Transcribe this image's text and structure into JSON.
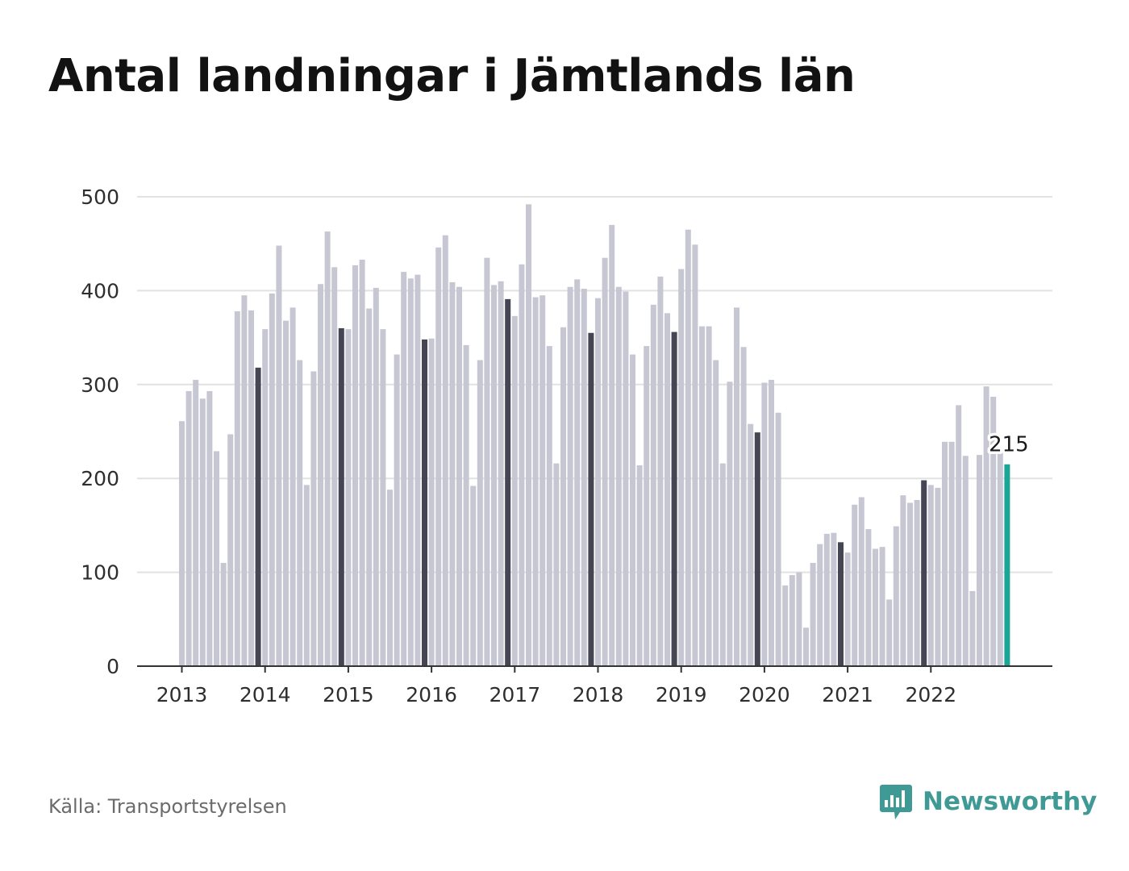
{
  "header": {
    "title": "Antal landningar i Jämtlands län"
  },
  "footer": {
    "source": "Källa: Transportstyrelsen",
    "brand": "Newsworthy"
  },
  "colors": {
    "bar": "#c7c6d3",
    "highlight": "#454554",
    "latest": "#1aa596",
    "grid": "#e2e2e2",
    "axis": "#333333",
    "brand": "#3f9a95"
  },
  "icons": {
    "brand": "newsworthy-logo-icon"
  },
  "chart_data": {
    "type": "bar",
    "title": "Antal landningar i Jämtlands län",
    "xlabel": "",
    "ylabel": "",
    "ylim": [
      0,
      500
    ],
    "yticks": [
      "0",
      "100",
      "200",
      "300",
      "400",
      "500"
    ],
    "xticks": [
      "2013",
      "2014",
      "2015",
      "2016",
      "2017",
      "2018",
      "2019",
      "2020",
      "2021",
      "2022"
    ],
    "grid": true,
    "highlight": "December bars in dark; latest month in teal",
    "annotation": {
      "text": "215",
      "target": "last"
    },
    "start": "2013-01",
    "values": [
      261,
      293,
      305,
      285,
      293,
      229,
      110,
      247,
      378,
      395,
      379,
      318,
      359,
      397,
      448,
      368,
      382,
      326,
      193,
      314,
      407,
      463,
      425,
      360,
      359,
      427,
      433,
      381,
      403,
      359,
      188,
      332,
      420,
      413,
      417,
      348,
      349,
      446,
      459,
      409,
      404,
      342,
      192,
      326,
      435,
      406,
      410,
      391,
      373,
      428,
      492,
      393,
      395,
      341,
      216,
      361,
      404,
      412,
      402,
      355,
      392,
      435,
      470,
      404,
      399,
      332,
      214,
      341,
      385,
      415,
      376,
      356,
      423,
      465,
      449,
      362,
      362,
      326,
      216,
      303,
      382,
      340,
      258,
      249,
      302,
      305,
      270,
      86,
      97,
      100,
      41,
      110,
      130,
      141,
      142,
      132,
      121,
      172,
      180,
      146,
      125,
      127,
      71,
      149,
      182,
      174,
      177,
      198,
      193,
      190,
      239,
      239,
      278,
      224,
      80,
      225,
      298,
      287,
      228,
      215
    ]
  }
}
